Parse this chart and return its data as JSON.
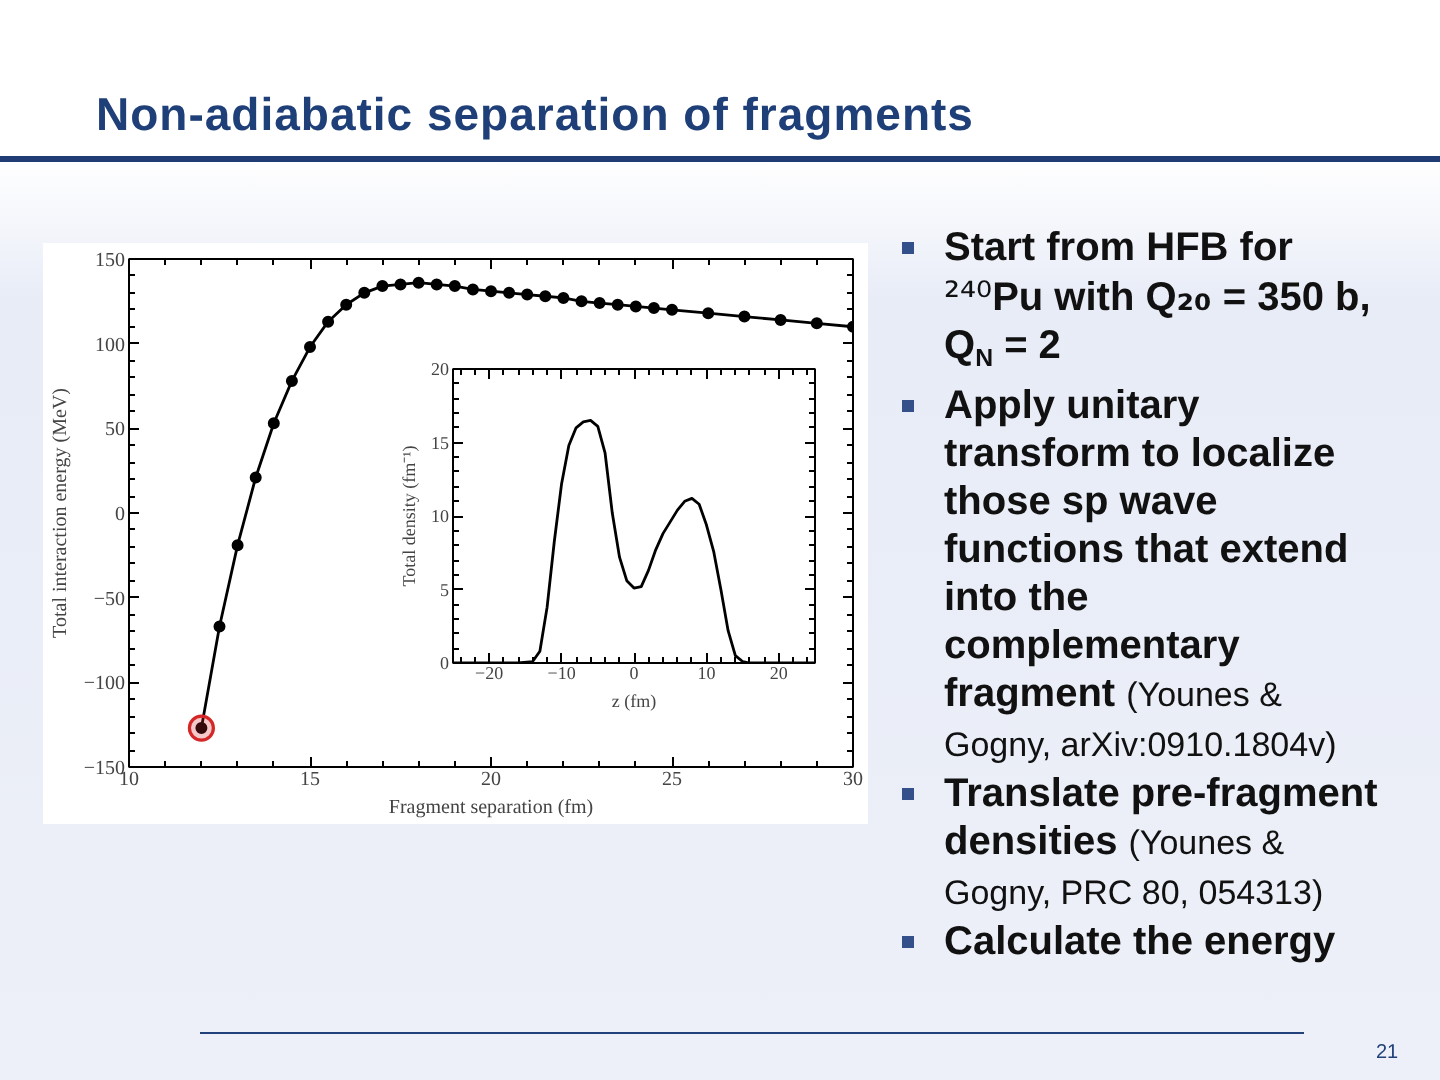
{
  "chart_data": [
    {
      "type": "other",
      "title": "Non-adiabatic separation of fragments",
      "annotations": [
        "Start from HFB for ²⁴⁰Pu with Q₂₀ = 350 b, Q$_{N}$ = 2",
        "Apply unitary transform to localize those sp wave functions that extend into the complementary fragment (Younes & Gogny, arXiv:0910.1804v)",
        "Translate pre-fragment densities (Younes & Gogny, PRC 80, 054313)",
        "Calculate the energy",
        "21"
      ]
    },
    {
      "type": "line",
      "xlabel": "Fragment separation (fm)",
      "ylabel": "Total interaction energy (MeV)",
      "xlim": [
        10,
        30
      ],
      "ylim": [
        -150,
        150
      ],
      "xticks": [
        10,
        15,
        20,
        25,
        30
      ],
      "yticks": [
        -150,
        -100,
        -50,
        0,
        50,
        100,
        150
      ],
      "marker": "circle",
      "x": [
        12,
        12.5,
        13,
        13.5,
        14,
        14.5,
        15,
        15.5,
        16,
        16.5,
        17,
        17.5,
        18,
        18.5,
        19,
        19.5,
        20,
        20.5,
        21,
        21.5,
        22,
        22.5,
        23,
        23.5,
        24,
        24.5,
        25,
        26,
        27,
        28,
        29,
        30
      ],
      "series": [
        {
          "color": "#000000",
          "values": [
            -127,
            -67,
            -19,
            21,
            53,
            78,
            98,
            113,
            123,
            130,
            134,
            135,
            136,
            135,
            134,
            132,
            131,
            130,
            129,
            128,
            127,
            125,
            124,
            123,
            122,
            121,
            120,
            118,
            116,
            114,
            112,
            110
          ]
        },
        {
          "type": "scatter",
          "color": "#d62728",
          "x": [
            12
          ],
          "values": [
            -127
          ]
        }
      ]
    },
    {
      "type": "line",
      "xlabel": "z (fm)",
      "ylabel": "Total density (fm⁻¹)",
      "xlim": [
        -25,
        25
      ],
      "ylim": [
        0,
        20
      ],
      "xticks": [
        -20,
        -10,
        0,
        10,
        20
      ],
      "yticks": [
        0,
        5,
        10,
        15,
        20
      ],
      "x": [
        -25,
        -16,
        -14,
        -13,
        -12,
        -11,
        -10,
        -9,
        -8,
        -7,
        -6,
        -5,
        -4,
        -3,
        -2,
        -1,
        0,
        1,
        2,
        3,
        4,
        5,
        6,
        7,
        8,
        9,
        10,
        11,
        12,
        13,
        14,
        15,
        16,
        25
      ],
      "series": [
        {
          "color": "#000000",
          "values": [
            0,
            0,
            0.1,
            0.8,
            3.8,
            8.3,
            12.2,
            14.8,
            16.0,
            16.4,
            16.5,
            16.1,
            14.3,
            10.2,
            7.2,
            5.6,
            5.1,
            5.2,
            6.3,
            7.7,
            8.8,
            9.6,
            10.4,
            11.0,
            11.2,
            10.8,
            9.4,
            7.6,
            5.0,
            2.2,
            0.5,
            0.1,
            0,
            0
          ]
        }
      ]
    }
  ]
}
